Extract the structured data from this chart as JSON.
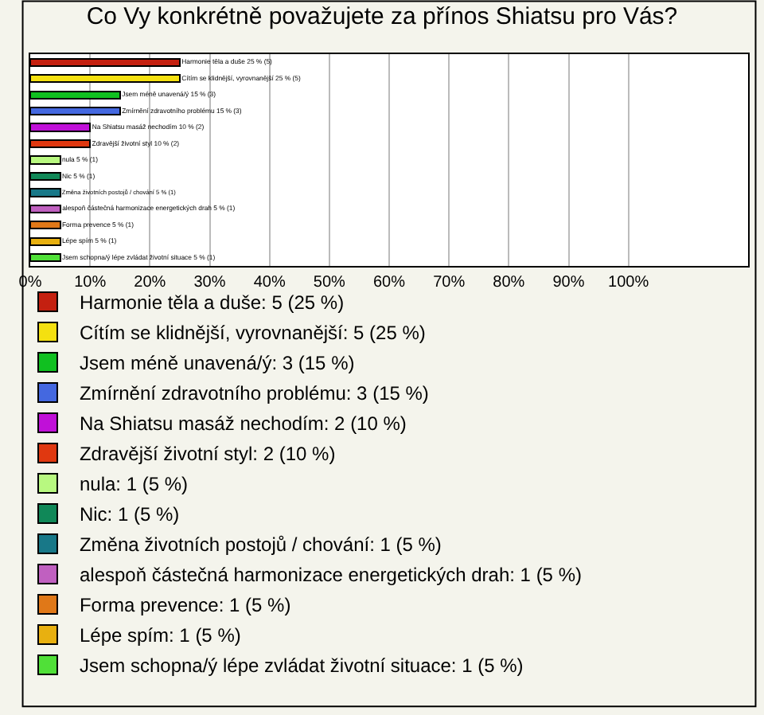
{
  "chart_data": {
    "type": "bar",
    "orientation": "horizontal",
    "stacked": true,
    "title": "Co Vy konkrétně považujete za přínos Shiatsu pro Vás?",
    "categories": [
      null,
      null,
      null,
      null,
      null,
      null,
      null,
      null,
      null,
      null,
      null,
      null,
      null
    ],
    "series": [
      {
        "name": "Harmonie těla a duše: 5 (25 %)",
        "color": "#c42010",
        "values": [
          25,
          null,
          null,
          null,
          null,
          null,
          null,
          null,
          null,
          null,
          null,
          null,
          null
        ],
        "value_labels": [
          "Harmonie těla a duše 25 % (5)",
          null,
          null,
          null,
          null,
          null,
          null,
          null,
          null,
          null,
          null,
          null,
          null
        ]
      },
      {
        "name": "Cítím se klidnější, vyrovnanější: 5 (25 %)",
        "color": "#f4e010",
        "values": [
          null,
          25,
          null,
          null,
          null,
          null,
          null,
          null,
          null,
          null,
          null,
          null,
          null
        ],
        "value_labels": [
          null,
          "Cítím se klidnější, vyrovnanější 25 % (5)",
          null,
          null,
          null,
          null,
          null,
          null,
          null,
          null,
          null,
          null,
          null
        ]
      },
      {
        "name": "Jsem méně unavená/ý: 3 (15 %)",
        "color": "#10c020",
        "values": [
          null,
          null,
          15,
          null,
          null,
          null,
          null,
          null,
          null,
          null,
          null,
          null,
          null
        ],
        "value_labels": [
          null,
          null,
          "Jsem méně unavená/ý 15 % (3)",
          null,
          null,
          null,
          null,
          null,
          null,
          null,
          null,
          null,
          null
        ]
      },
      {
        "name": "Zmírnění zdravotního problému: 3 (15 %)",
        "color": "#4468e0",
        "values": [
          null,
          null,
          null,
          15,
          null,
          null,
          null,
          null,
          null,
          null,
          null,
          null,
          null
        ],
        "value_labels": [
          null,
          null,
          null,
          "Zmírnění zdravotního problému 15 % (3)",
          null,
          null,
          null,
          null,
          null,
          null,
          null,
          null,
          null
        ]
      },
      {
        "name": "Na Shiatsu masáž nechodím: 2 (10 %)",
        "color": "#c010d8",
        "values": [
          null,
          null,
          null,
          null,
          10,
          null,
          null,
          null,
          null,
          null,
          null,
          null,
          null
        ],
        "value_labels": [
          null,
          null,
          null,
          null,
          "Na Shiatsu masáž nechodím 10 % (2)",
          null,
          null,
          null,
          null,
          null,
          null,
          null,
          null
        ]
      },
      {
        "name": "Zdravější životní styl: 2 (10 %)",
        "color": "#e03810",
        "values": [
          null,
          null,
          null,
          null,
          null,
          10,
          null,
          null,
          null,
          null,
          null,
          null,
          null
        ],
        "value_labels": [
          null,
          null,
          null,
          null,
          null,
          "Zdravější životní styl 10 % (2)",
          null,
          null,
          null,
          null,
          null,
          null,
          null
        ]
      },
      {
        "name": "nula: 1 (5 %)",
        "color": "#b8f880",
        "values": [
          null,
          null,
          null,
          null,
          null,
          null,
          5,
          null,
          null,
          null,
          null,
          null,
          null
        ],
        "value_labels": [
          null,
          null,
          null,
          null,
          null,
          null,
          "nula 5 % (1)",
          null,
          null,
          null,
          null,
          null,
          null
        ]
      },
      {
        "name": "Nic: 1 (5 %)",
        "color": "#108858",
        "values": [
          null,
          null,
          null,
          null,
          null,
          null,
          null,
          5,
          null,
          null,
          null,
          null,
          null
        ],
        "value_labels": [
          null,
          null,
          null,
          null,
          null,
          null,
          null,
          "Nic 5 % (1)",
          null,
          null,
          null,
          null,
          null
        ]
      },
      {
        "name": "Změna životních postojů / chování: 1 (5 %)",
        "color": "#187888",
        "values": [
          null,
          null,
          null,
          null,
          null,
          null,
          null,
          null,
          5,
          null,
          null,
          null,
          null
        ],
        "value_labels": [
          null,
          null,
          null,
          null,
          null,
          null,
          null,
          null,
          "Změna životních postojů / chování 5 % (1)",
          null,
          null,
          null,
          null
        ]
      },
      {
        "name": "alespoň částečná harmonizace energetických drah: 1 (5 %)",
        "color": "#c060c0",
        "values": [
          null,
          null,
          null,
          null,
          null,
          null,
          null,
          null,
          null,
          5,
          null,
          null,
          null
        ],
        "value_labels": [
          null,
          null,
          null,
          null,
          null,
          null,
          null,
          null,
          null,
          "alespoň částečná harmonizace energetických drah 5 % (1)",
          null,
          null,
          null
        ]
      },
      {
        "name": "Forma prevence: 1 (5 %)",
        "color": "#e07818",
        "values": [
          null,
          null,
          null,
          null,
          null,
          null,
          null,
          null,
          null,
          null,
          5,
          null,
          null
        ],
        "value_labels": [
          null,
          null,
          null,
          null,
          null,
          null,
          null,
          null,
          null,
          null,
          "Forma prevence 5 % (1)",
          null,
          null
        ]
      },
      {
        "name": "Lépe spím: 1 (5 %)",
        "color": "#e8b010",
        "values": [
          null,
          null,
          null,
          null,
          null,
          null,
          null,
          null,
          null,
          null,
          null,
          5,
          null
        ],
        "value_labels": [
          null,
          null,
          null,
          null,
          null,
          null,
          null,
          null,
          null,
          null,
          null,
          "Lépe spím 5 % (1)",
          null
        ]
      },
      {
        "name": "Jsem schopna/ý lépe zvládat životní situace: 1 (5 %)",
        "color": "#50e038",
        "values": [
          null,
          null,
          null,
          null,
          null,
          null,
          null,
          null,
          null,
          null,
          null,
          null,
          5
        ],
        "value_labels": [
          null,
          null,
          null,
          null,
          null,
          null,
          null,
          null,
          null,
          null,
          null,
          null,
          "Jsem schopna/ý lépe zvládat životní situace 5 % (1)"
        ]
      }
    ],
    "xlim": [
      0,
      120
    ],
    "xticks": [
      {
        "value": 0,
        "label": "0%"
      },
      {
        "value": 10,
        "label": "10%"
      },
      {
        "value": 20,
        "label": "20%"
      },
      {
        "value": 30,
        "label": "30%"
      },
      {
        "value": 40,
        "label": "40%"
      },
      {
        "value": 50,
        "label": "50%"
      },
      {
        "value": 60,
        "label": "60%"
      },
      {
        "value": 70,
        "label": "70%"
      },
      {
        "value": 80,
        "label": "80%"
      },
      {
        "value": 90,
        "label": "90%"
      },
      {
        "value": 100,
        "label": "100%"
      }
    ],
    "grid": "x",
    "legend": "bottom"
  }
}
